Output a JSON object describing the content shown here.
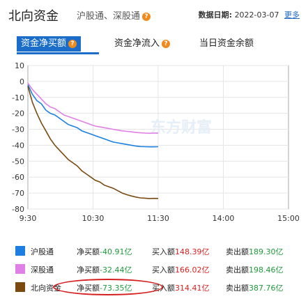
{
  "header": {
    "title": "北向资金",
    "subtitle": "沪股通、深股通",
    "help_glyph": "?",
    "date_label": "数据日期:",
    "date_value": "2022-03-07",
    "more_link": "更多"
  },
  "tabs": [
    {
      "label": "资金净买额",
      "help": "?"
    },
    {
      "label": "资金净流入",
      "help": "?"
    },
    {
      "label": "当日资金余额"
    }
  ],
  "watermark": "东方财富",
  "chart_data": {
    "type": "line",
    "x_ticks": [
      "9:30",
      "10:30",
      "11:30",
      "14:00",
      "15:00"
    ],
    "y_ticks": [
      10,
      0,
      -10,
      -20,
      -30,
      -40,
      -50,
      -60,
      -70,
      -80
    ],
    "ylim": [
      -80,
      10
    ],
    "series": [
      {
        "name": "沪股通",
        "color": "#1a7fe0",
        "values": [
          -2,
          -8,
          -12,
          -14,
          -18,
          -20,
          -21,
          -23,
          -25,
          -27,
          -28,
          -29,
          -31,
          -32,
          -33,
          -34,
          -35,
          -36,
          -37,
          -38,
          -38.5,
          -39,
          -39.5,
          -40,
          -40.5,
          -40.8,
          -40.9,
          -41,
          -41,
          -40.91
        ]
      },
      {
        "name": "深股通",
        "color": "#e080e6",
        "values": [
          -1,
          -5,
          -8,
          -11,
          -14,
          -16,
          -17,
          -19,
          -21,
          -22,
          -23,
          -24,
          -25,
          -26,
          -27,
          -28,
          -28.5,
          -29,
          -29.5,
          -30,
          -30.5,
          -31,
          -31.3,
          -31.6,
          -32,
          -32.2,
          -32.4,
          -32.5,
          -32.4,
          -32.44
        ]
      },
      {
        "name": "北向资金",
        "color": "#7a4a10",
        "values": [
          -3,
          -13,
          -20,
          -26,
          -31,
          -36,
          -40,
          -43,
          -46,
          -49,
          -51,
          -53,
          -56,
          -58,
          -60,
          -62,
          -63,
          -65,
          -66,
          -67,
          -68.5,
          -70,
          -71,
          -71.8,
          -72.5,
          -73,
          -73.2,
          -73.4,
          -73.3,
          -73.35
        ]
      }
    ]
  },
  "stats": [
    {
      "name": "沪股通",
      "color": "#1a7fe0",
      "net_label": "净买额",
      "net_value": "-40.91亿",
      "buy_label": "买入额",
      "buy_value": "148.39亿",
      "sell_label": "卖出额",
      "sell_value": "189.30亿"
    },
    {
      "name": "深股通",
      "color": "#e080e6",
      "net_label": "净买额",
      "net_value": "-32.44亿",
      "buy_label": "买入额",
      "buy_value": "166.02亿",
      "sell_label": "卖出额",
      "sell_value": "198.46亿"
    },
    {
      "name": "北向资金",
      "color": "#7a4a10",
      "net_label": "净买额",
      "net_value": "-73.35亿",
      "buy_label": "买入额",
      "buy_value": "314.41亿",
      "sell_label": "卖出额",
      "sell_value": "387.76亿"
    }
  ]
}
